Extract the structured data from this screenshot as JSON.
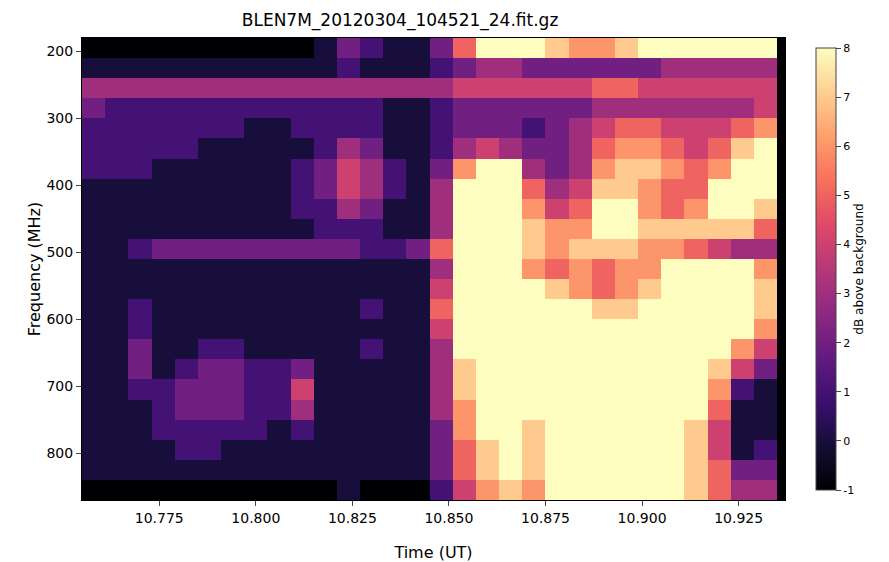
{
  "chart_data": {
    "type": "heatmap",
    "title": "BLEN7M_20120304_104521_24.fit.gz",
    "x_label": "Time (UT)",
    "y_label": "Frequency (MHz)",
    "colorbar_label": "dB above background",
    "x": [
      10.758,
      10.764,
      10.77,
      10.776,
      10.782,
      10.788,
      10.794,
      10.8,
      10.806,
      10.812,
      10.818,
      10.824,
      10.83,
      10.836,
      10.842,
      10.848,
      10.854,
      10.86,
      10.866,
      10.872,
      10.878,
      10.884,
      10.89,
      10.896,
      10.902,
      10.908,
      10.914,
      10.92,
      10.926,
      10.932
    ],
    "y": [
      195,
      225,
      255,
      285,
      315,
      345,
      375,
      405,
      435,
      465,
      495,
      525,
      555,
      585,
      615,
      645,
      675,
      705,
      735,
      765,
      795,
      825,
      855
    ],
    "z": [
      [
        -1,
        -1,
        -1,
        -1,
        -1,
        -1,
        -1,
        -1,
        -1,
        -1,
        0,
        2,
        1,
        0,
        0,
        2,
        5,
        8,
        8,
        8,
        7,
        6,
        6,
        7,
        8,
        8,
        8,
        8,
        8,
        8
      ],
      [
        0,
        0,
        0,
        0,
        0,
        0,
        0,
        0,
        0,
        0,
        0,
        1,
        0,
        0,
        0,
        1,
        2,
        3,
        3,
        2,
        2,
        2,
        2,
        2,
        2,
        3,
        3,
        3,
        3,
        3
      ],
      [
        3,
        3,
        3,
        3,
        3,
        3,
        3,
        3,
        3,
        3,
        3,
        3,
        3,
        3,
        3,
        3,
        4,
        4,
        4,
        4,
        4,
        4,
        5,
        5,
        4,
        4,
        4,
        4,
        4,
        4
      ],
      [
        2,
        1,
        1,
        1,
        1,
        1,
        1,
        1,
        1,
        1,
        1,
        1,
        1,
        0,
        0,
        1,
        2,
        2,
        2,
        2,
        2,
        2,
        3,
        3,
        3,
        3,
        3,
        3,
        3,
        4
      ],
      [
        1,
        1,
        1,
        1,
        1,
        1,
        1,
        0,
        0,
        1,
        1,
        1,
        1,
        0,
        0,
        1,
        2,
        2,
        2,
        1,
        2,
        3,
        4,
        5,
        5,
        4,
        4,
        4,
        5,
        6
      ],
      [
        1,
        1,
        1,
        1,
        1,
        0,
        0,
        0,
        0,
        0,
        1,
        3,
        2,
        0,
        0,
        1,
        3,
        4,
        3,
        2,
        2,
        3,
        5,
        6,
        6,
        5,
        4,
        5,
        7,
        8
      ],
      [
        1,
        1,
        1,
        0,
        0,
        0,
        0,
        0,
        0,
        1,
        2,
        4,
        3,
        1,
        0,
        2,
        6,
        8,
        8,
        3,
        2,
        3,
        6,
        7,
        7,
        6,
        5,
        6,
        8,
        8
      ],
      [
        0,
        0,
        0,
        0,
        0,
        0,
        0,
        0,
        0,
        1,
        2,
        4,
        3,
        1,
        0,
        3,
        8,
        8,
        8,
        5,
        3,
        4,
        7,
        7,
        6,
        5,
        5,
        8,
        8,
        8
      ],
      [
        0,
        0,
        0,
        0,
        0,
        0,
        0,
        0,
        0,
        1,
        1,
        3,
        2,
        0,
        0,
        3,
        8,
        8,
        8,
        6,
        4,
        5,
        8,
        8,
        6,
        5,
        6,
        8,
        8,
        7
      ],
      [
        0,
        0,
        0,
        0,
        0,
        0,
        0,
        0,
        0,
        0,
        1,
        1,
        1,
        0,
        0,
        3,
        8,
        8,
        8,
        7,
        6,
        6,
        8,
        8,
        7,
        7,
        7,
        7,
        7,
        5
      ],
      [
        0,
        0,
        1,
        2,
        2,
        2,
        2,
        2,
        2,
        2,
        2,
        2,
        1,
        1,
        2,
        5,
        8,
        8,
        8,
        7,
        6,
        7,
        7,
        7,
        6,
        6,
        5,
        4,
        3,
        3
      ],
      [
        0,
        0,
        0,
        0,
        0,
        0,
        0,
        0,
        0,
        0,
        0,
        0,
        0,
        0,
        0,
        3,
        8,
        8,
        8,
        6,
        5,
        6,
        5,
        6,
        6,
        8,
        8,
        8,
        8,
        6
      ],
      [
        0,
        0,
        0,
        0,
        0,
        0,
        0,
        0,
        0,
        0,
        0,
        0,
        0,
        0,
        0,
        4,
        8,
        8,
        8,
        8,
        7,
        6,
        5,
        6,
        7,
        8,
        8,
        8,
        8,
        7
      ],
      [
        0,
        0,
        1,
        0,
        0,
        0,
        0,
        0,
        0,
        0,
        0,
        0,
        1,
        0,
        0,
        5,
        8,
        8,
        8,
        8,
        8,
        8,
        7,
        7,
        8,
        8,
        8,
        8,
        8,
        7
      ],
      [
        0,
        0,
        1,
        0,
        0,
        0,
        0,
        0,
        0,
        0,
        0,
        0,
        0,
        0,
        0,
        4,
        8,
        8,
        8,
        8,
        8,
        8,
        8,
        8,
        8,
        8,
        8,
        8,
        8,
        6
      ],
      [
        0,
        0,
        2,
        0,
        0,
        1,
        1,
        0,
        0,
        0,
        0,
        0,
        1,
        0,
        0,
        3,
        8,
        8,
        8,
        8,
        8,
        8,
        8,
        8,
        8,
        8,
        8,
        8,
        6,
        4
      ],
      [
        0,
        0,
        2,
        0,
        1,
        2,
        2,
        1,
        1,
        2,
        0,
        0,
        0,
        0,
        0,
        3,
        7,
        8,
        8,
        8,
        8,
        8,
        8,
        8,
        8,
        8,
        8,
        7,
        4,
        2
      ],
      [
        0,
        0,
        1,
        1,
        2,
        2,
        2,
        1,
        1,
        4,
        0,
        0,
        0,
        0,
        0,
        3,
        7,
        8,
        8,
        8,
        8,
        8,
        8,
        8,
        8,
        8,
        8,
        6,
        1,
        0
      ],
      [
        0,
        0,
        0,
        1,
        2,
        2,
        2,
        1,
        1,
        3,
        0,
        0,
        0,
        0,
        0,
        3,
        6,
        8,
        8,
        8,
        8,
        8,
        8,
        8,
        8,
        8,
        8,
        5,
        0,
        0
      ],
      [
        0,
        0,
        0,
        1,
        1,
        1,
        1,
        1,
        0,
        1,
        0,
        0,
        0,
        0,
        0,
        2,
        6,
        8,
        8,
        7,
        8,
        8,
        8,
        8,
        8,
        8,
        7,
        4,
        0,
        0
      ],
      [
        0,
        0,
        0,
        0,
        1,
        1,
        0,
        0,
        0,
        0,
        0,
        0,
        0,
        0,
        0,
        2,
        5,
        7,
        8,
        7,
        8,
        8,
        8,
        8,
        8,
        8,
        7,
        4,
        0,
        1
      ],
      [
        0,
        0,
        0,
        0,
        0,
        0,
        0,
        0,
        0,
        0,
        0,
        0,
        0,
        0,
        0,
        2,
        5,
        7,
        8,
        7,
        8,
        8,
        8,
        8,
        8,
        8,
        7,
        5,
        2,
        2
      ],
      [
        -1,
        -1,
        -1,
        -1,
        -1,
        -1,
        -1,
        -1,
        -1,
        -1,
        -1,
        0,
        -1,
        -1,
        -1,
        1,
        4,
        6,
        7,
        6,
        8,
        8,
        8,
        8,
        8,
        8,
        7,
        5,
        3,
        3
      ]
    ],
    "xlim": [
      10.755,
      10.937
    ],
    "ylim": [
      870,
      180
    ],
    "xticks": [
      10.775,
      {
        "value": 10.8,
        "label": "10.800"
      },
      10.825,
      {
        "value": 10.85,
        "label": "10.850"
      },
      10.875,
      {
        "value": 10.9,
        "label": "10.900"
      },
      10.925
    ],
    "yticks": [
      200,
      300,
      400,
      500,
      600,
      700,
      800
    ],
    "zlim": [
      -1,
      8
    ],
    "zticks": [
      -1,
      0,
      1,
      2,
      3,
      4,
      5,
      6,
      7,
      8
    ]
  }
}
